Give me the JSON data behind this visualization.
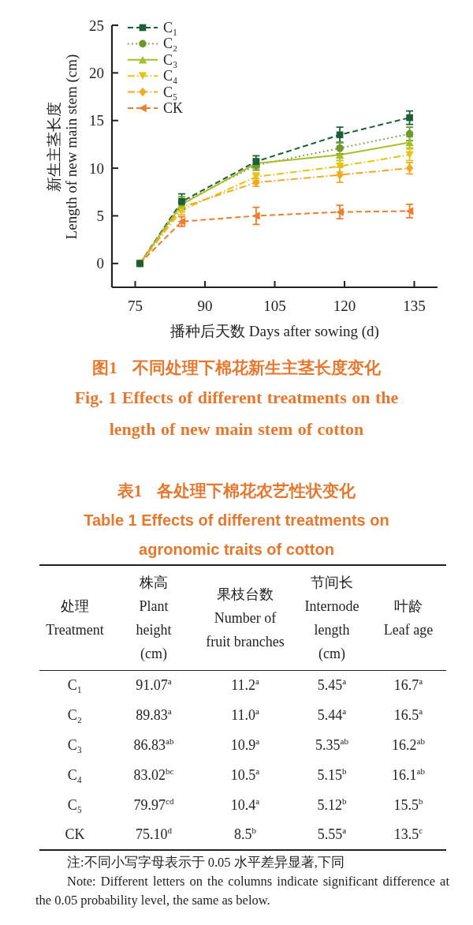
{
  "chart_data": [
    {
      "type": "line",
      "title": "图1 不同处理下棉花新生主茎长度变化",
      "subtitle": "Fig. 1 Effects of different treatments on the length of new main stem of cotton",
      "xlabel": "播种后天数 Days after sowing (d)",
      "ylabel": "新生主茎长度\nLength of new main stem (cm)",
      "x": [
        76,
        85,
        101,
        119,
        134
      ],
      "xlim": [
        70,
        140
      ],
      "xticks": [
        75,
        90,
        105,
        120,
        135
      ],
      "ylim": [
        -2.5,
        25
      ],
      "yticks": [
        0,
        5,
        10,
        15,
        20,
        25
      ],
      "legend": "top left",
      "series": [
        {
          "name": "C₁",
          "color": "#1b5e38",
          "marker": "square",
          "line_style": "dashed",
          "values": [
            0,
            6.5,
            10.7,
            13.5,
            15.3
          ],
          "errors": [
            null,
            0.8,
            0.6,
            0.8,
            0.7
          ]
        },
        {
          "name": "C₂",
          "color": "#6c9a2c",
          "marker": "circle",
          "line_style": "dotted",
          "values": [
            0,
            6.4,
            10.3,
            12.1,
            13.6
          ],
          "errors": [
            null,
            0.6,
            0.5,
            0.6,
            0.7
          ]
        },
        {
          "name": "C₃",
          "color": "#a8bd2a",
          "marker": "triangle",
          "line_style": "solid",
          "values": [
            0,
            6.2,
            10.5,
            11.4,
            12.7
          ],
          "errors": [
            null,
            0.6,
            0.5,
            0.6,
            0.6
          ]
        },
        {
          "name": "C₄",
          "color": "#e6c317",
          "marker": "triangle-down",
          "line_style": "dashdot",
          "values": [
            0,
            5.6,
            9.1,
            10.2,
            11.4
          ],
          "errors": [
            null,
            0.5,
            0.4,
            0.6,
            0.6
          ]
        },
        {
          "name": "C₅",
          "color": "#f2a928",
          "marker": "diamond",
          "line_style": "dashdot",
          "values": [
            0,
            5.9,
            8.5,
            9.3,
            10.0
          ],
          "errors": [
            null,
            0.5,
            0.4,
            0.8,
            0.6
          ]
        },
        {
          "name": "CK",
          "color": "#ef7d2c",
          "marker": "triangle-left",
          "line_style": "dashed",
          "values": [
            0,
            4.4,
            5.0,
            5.4,
            5.5
          ],
          "errors": [
            null,
            0.5,
            0.9,
            0.7,
            0.7
          ]
        }
      ]
    },
    {
      "type": "other",
      "title": "表1 各处理下棉花农艺性状变化",
      "subtitle": "Table 1 Effects of different treatments on agronomic traits of cotton",
      "ylabel": "处理\nTreatment",
      "categories": [
        "株高\nPlant\nheight\n(cm)",
        "果枝台数\nNumber of\nfruit branches",
        "节间长\nInternode\nlength\n(cm)",
        "叶龄\nLeaf age"
      ],
      "y_categories": [
        "C₁",
        "C₂",
        "C₃",
        "C₄",
        "C₅",
        "CK"
      ],
      "cell_labels": [
        [
          "91.07$^{a}$",
          "11.2$^{a}$",
          "5.45$^{a}$",
          "16.7$^{a}$"
        ],
        [
          "89.83$^{a}$",
          "11.0$^{a}$",
          "5.44$^{a}$",
          "16.5$^{a}$"
        ],
        [
          "86.83$^{ab}$",
          "10.9$^{a}$",
          "5.35$^{ab}$",
          "16.2$^{ab}$"
        ],
        [
          "83.02$^{bc}$",
          "10.5$^{a}$",
          "5.15$^{b}$",
          "16.1$^{ab}$"
        ],
        [
          "79.97$^{cd}$",
          "10.4$^{a}$",
          "5.12$^{b}$",
          "15.5$^{b}$"
        ],
        [
          "75.10$^{d}$",
          "8.5$^{b}$",
          "5.55$^{a}$",
          "13.5$^{c}$"
        ]
      ],
      "annotations": [
        "注:不同小写字母表示于 0.05 水平差异显著,下同",
        "Note: Different letters on the columns indicate significant difference at the 0.05 probability level, the same as below."
      ]
    }
  ]
}
